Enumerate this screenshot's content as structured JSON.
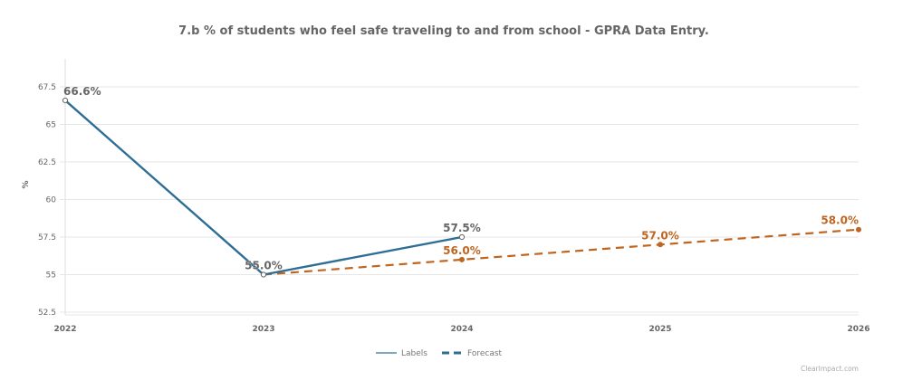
{
  "chart_data": {
    "type": "line",
    "title": "7.b % of students who feel safe traveling to and from school - GPRA Data Entry.",
    "xlabel": "",
    "ylabel": "%",
    "x": [
      "2022",
      "2023",
      "2024",
      "2025",
      "2026"
    ],
    "ylim": [
      52.5,
      67.5
    ],
    "yticks": [
      "52.5",
      "55",
      "57.5",
      "60",
      "62.5",
      "65",
      "67.5"
    ],
    "grid": true,
    "legend_position": "bottom-center",
    "series": [
      {
        "name": "Labels",
        "style": "solid",
        "color": "#2e6e95",
        "legend_color": "#7fa6c0",
        "x": [
          "2022",
          "2023",
          "2024"
        ],
        "values": [
          66.6,
          55.0,
          57.5
        ],
        "data_labels": [
          "66.6%",
          "55.0%",
          "57.5%"
        ],
        "label_color": "#666666"
      },
      {
        "name": "Forecast",
        "style": "dashed",
        "color": "#c0651f",
        "legend_color": "#2e6e95",
        "x": [
          "2023",
          "2024",
          "2025",
          "2026"
        ],
        "values": [
          55.0,
          56.0,
          57.0,
          58.0
        ],
        "data_labels": [
          "",
          "56.0%",
          "57.0%",
          "58.0%"
        ],
        "label_color": "#c0651f"
      }
    ],
    "credit": "ClearImpact.com"
  }
}
